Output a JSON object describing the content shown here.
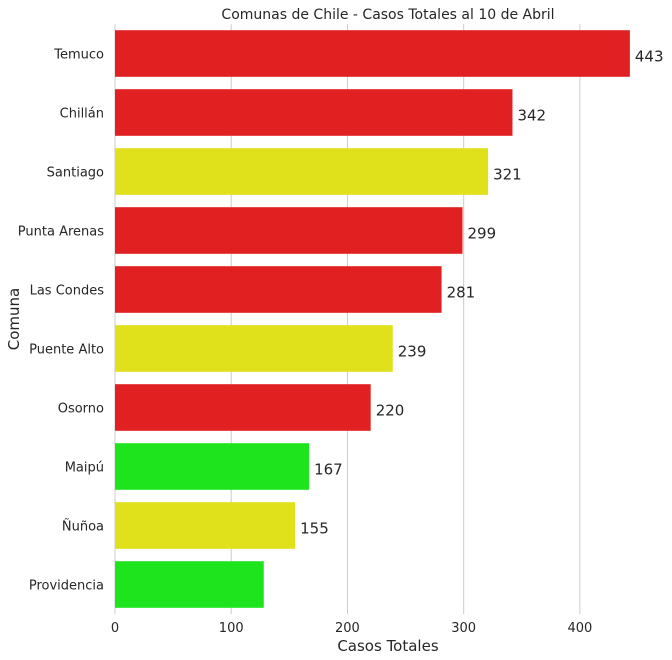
{
  "chart_data": {
    "type": "bar",
    "orientation": "horizontal",
    "title": "Comunas de Chile - Casos Totales al 10 de Abril",
    "xlabel": "Casos Totales",
    "ylabel": "Comuna",
    "xlim": [
      0,
      450
    ],
    "xticks": [
      0,
      100,
      200,
      300,
      400
    ],
    "grid": "vertical",
    "categories": [
      "Temuco",
      "Chillán",
      "Santiago",
      "Punta Arenas",
      "Las Condes",
      "Puente Alto",
      "Osorno",
      "Maipú",
      "Ñuñoa",
      "Providencia"
    ],
    "values": [
      443,
      342,
      321,
      299,
      281,
      239,
      220,
      167,
      155,
      128
    ],
    "labels": [
      "443",
      "342",
      "321",
      "299",
      "281",
      "239",
      "220",
      "167",
      "155",
      ""
    ],
    "colors": [
      "#e12121",
      "#e12121",
      "#e0e01b",
      "#e12121",
      "#e12121",
      "#e0e01b",
      "#e12121",
      "#1de41d",
      "#e0e01b",
      "#1de41d"
    ]
  }
}
